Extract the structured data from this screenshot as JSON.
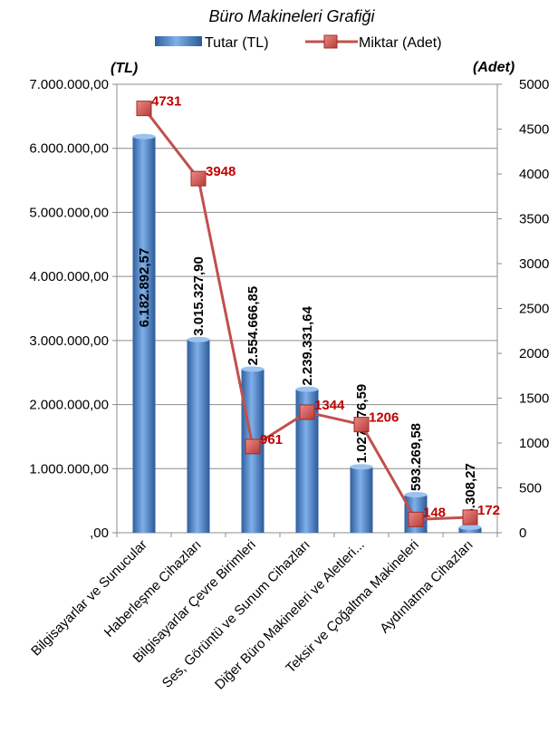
{
  "chart_data": {
    "type": "bar",
    "title": "Büro Makineleri Grafiği",
    "left_unit": "(TL)",
    "right_unit": "(Adet)",
    "categories": [
      "Bilgisayarlar ve Sunucular",
      "Haberleşme Cihazları",
      "Bilgisayarlar Çevre Birimleri",
      "Ses, Görüntü ve Sunum Cihazları",
      "Diğer Büro Makineleri ve Aletleri...",
      "Teksir ve Çoğaltma Makineleri",
      "Aydınlatma Cihazları"
    ],
    "series": [
      {
        "name": "Tutar (TL)",
        "type": "bar",
        "axis": "left",
        "color": "#4f86c6",
        "values": [
          6182892.57,
          3015327.9,
          2554666.85,
          2239331.64,
          1027976.59,
          593269.58,
          86308.27
        ],
        "labels": [
          "6.182.892,57",
          "3.015.327,90",
          "2.554.666,85",
          "2.239.331,64",
          "1.027.976,59",
          "593.269,58",
          "86.308,27"
        ]
      },
      {
        "name": "Miktar (Adet)",
        "type": "line",
        "axis": "right",
        "color": "#c0504d",
        "values": [
          4731,
          3948,
          961,
          1344,
          1206,
          148,
          172
        ],
        "labels": [
          "4731",
          "3948",
          "961",
          "1344",
          "1206",
          "148",
          "172"
        ]
      }
    ],
    "left_axis": {
      "ylim": [
        0,
        7000000
      ],
      "ticks": [
        0,
        1000000,
        2000000,
        3000000,
        4000000,
        5000000,
        6000000,
        7000000
      ],
      "tick_labels": [
        ",00",
        "1.000.000,00",
        "2.000.000,00",
        "3.000.000,00",
        "4.000.000,00",
        "5.000.000,00",
        "6.000.000,00",
        "7.000.000,00"
      ]
    },
    "right_axis": {
      "ylim": [
        0,
        5000
      ],
      "ticks": [
        0,
        500,
        1000,
        1500,
        2000,
        2500,
        3000,
        3500,
        4000,
        4500,
        5000
      ],
      "tick_labels": [
        "0",
        "500",
        "1000",
        "1500",
        "2000",
        "2500",
        "3000",
        "3500",
        "4000",
        "4500",
        "5000"
      ]
    },
    "legend_position": "top",
    "grid": true
  }
}
